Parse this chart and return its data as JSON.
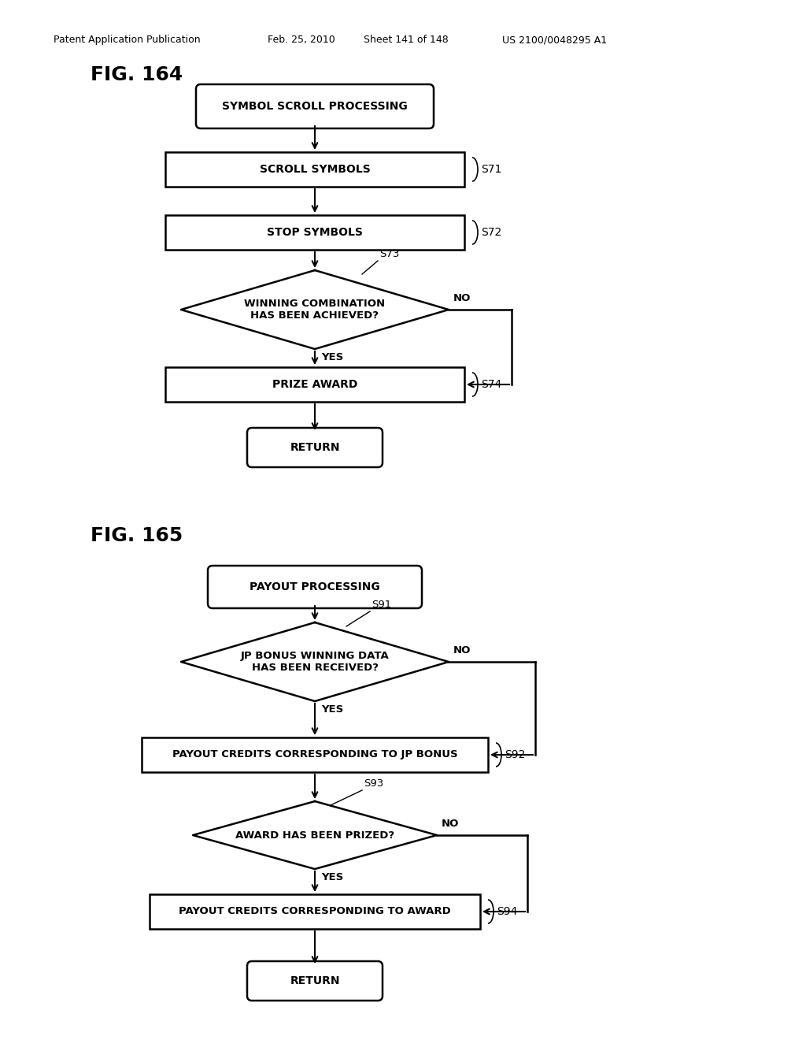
{
  "bg_color": "#ffffff",
  "header_text": "Patent Application Publication",
  "header_date": "Feb. 25, 2010",
  "header_sheet": "Sheet 141 of 148",
  "header_patent": "US 2100/0048295 A1",
  "fig164_title": "FIG. 164",
  "fig165_title": "FIG. 165",
  "line_width": 1.8,
  "arrow_lw": 1.5
}
